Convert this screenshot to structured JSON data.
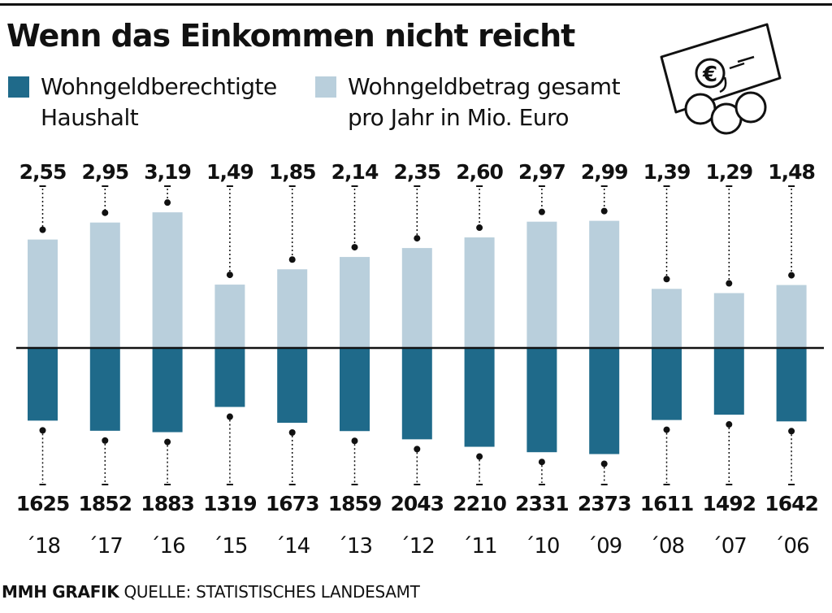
{
  "title": "Wenn das Einkommen nicht reicht",
  "legend": [
    {
      "label": "Wohngeldberechtigte\nHaushalt",
      "color": "#1f6a8a"
    },
    {
      "label": "Wohngeldbetrag gesamt\npro Jahr in Mio. Euro",
      "color": "#b9cfdc"
    }
  ],
  "footer": {
    "credit": "MMH GRAFIK",
    "source": "QUELLE: STATISTISCHES LANDESAMT"
  },
  "icon": "euro-banknote-coins-icon",
  "colors": {
    "households": "#1f6a8a",
    "amount": "#b9cfdc",
    "text": "#111111"
  },
  "chart_data": {
    "type": "bar",
    "categories": [
      "´18",
      "´17",
      "´16",
      "´15",
      "´14",
      "´13",
      "´12",
      "´11",
      "´10",
      "´09",
      "´08",
      "´07",
      "´06"
    ],
    "series": [
      {
        "name": "Wohngeldbetrag gesamt pro Jahr in Mio. Euro",
        "values": [
          "2,55",
          "2,95",
          "3,19",
          "1,49",
          "1,85",
          "2,14",
          "2,35",
          "2,60",
          "2,97",
          "2,99",
          "1,39",
          "1,29",
          "1,48"
        ]
      },
      {
        "name": "Wohngeldberechtigte Haushalt",
        "values": [
          1625,
          1852,
          1883,
          1319,
          1673,
          1859,
          2043,
          2210,
          2331,
          2373,
          1611,
          1492,
          1642
        ]
      }
    ],
    "grid": false,
    "legend_position": "top"
  }
}
